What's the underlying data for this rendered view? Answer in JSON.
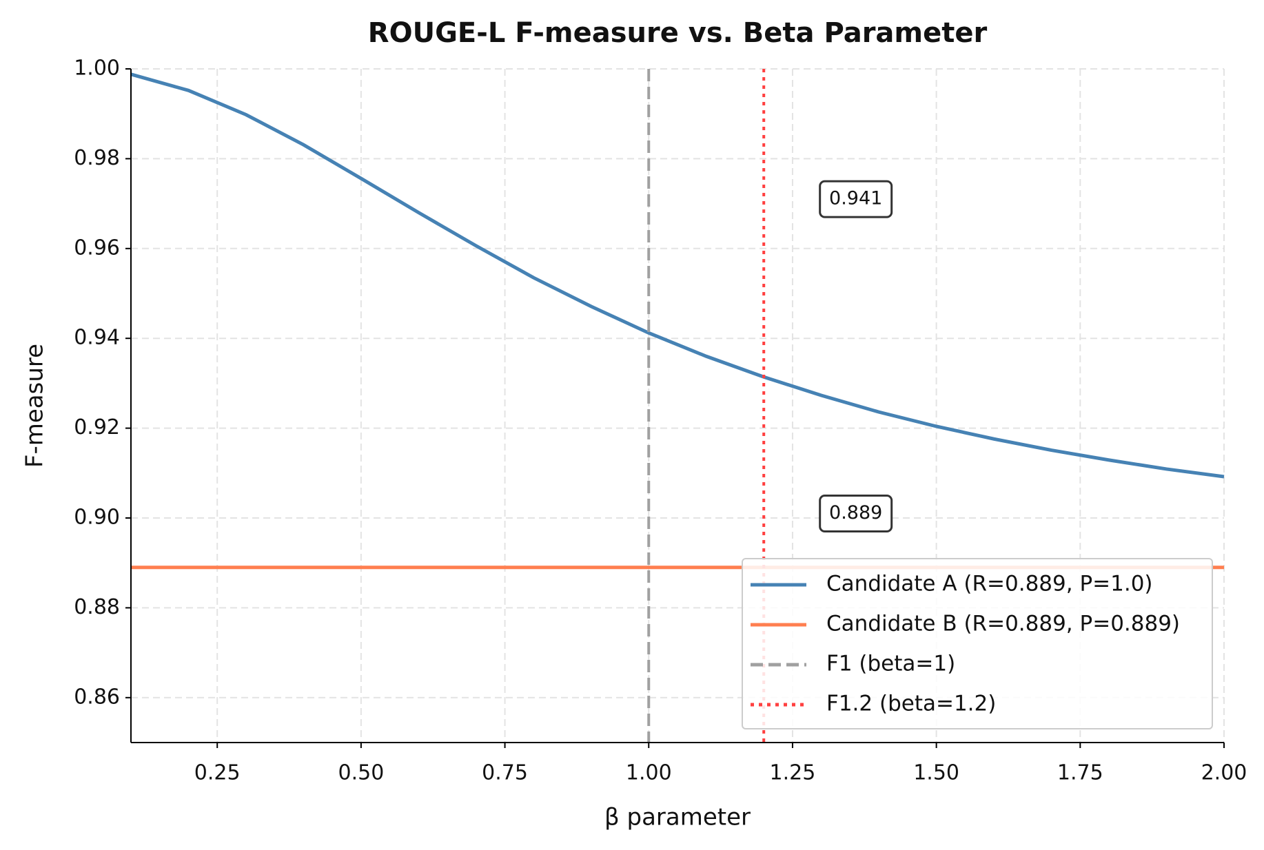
{
  "chart_data": {
    "type": "line",
    "title": "ROUGE-L F-measure vs. Beta Parameter",
    "x_label": "β parameter",
    "y_label": "F-measure",
    "xlim": [
      0.1,
      2.0
    ],
    "ylim": [
      0.85,
      1.0
    ],
    "xticks": [
      0.25,
      {
        "value": 0.5,
        "label": "0.50"
      },
      0.75,
      {
        "value": 1.0,
        "label": "1.00"
      },
      1.25,
      {
        "value": 1.5,
        "label": "1.50"
      },
      1.75,
      {
        "value": 2.0,
        "label": "2.00"
      }
    ],
    "yticks": [
      0.86,
      0.88,
      {
        "value": 0.9,
        "label": "0.90"
      },
      0.92,
      0.94,
      0.96,
      0.98,
      {
        "value": 1.0,
        "label": "1.00"
      }
    ],
    "grid": true,
    "legend": "lower right",
    "series": [
      {
        "name": "Candidate A (R=0.889, P=1.0)",
        "color": "#4682b4",
        "style": "solid",
        "x": [
          0.1,
          0.2,
          0.3,
          0.4,
          0.5,
          0.6,
          0.7,
          0.8,
          0.9,
          1.0,
          1.1,
          1.2,
          1.3,
          1.4,
          1.5,
          1.6,
          1.7,
          1.8,
          1.9,
          2.0
        ],
        "values": [
          0.9988,
          0.9952,
          0.9898,
          0.9831,
          0.9756,
          0.968,
          0.9606,
          0.9535,
          0.9471,
          0.9412,
          0.936,
          0.9314,
          0.9273,
          0.9236,
          0.9204,
          0.9176,
          0.9151,
          0.9129,
          0.9109,
          0.9092
        ]
      },
      {
        "name": "Candidate B (R=0.889, P=0.889)",
        "color": "#ff7f50",
        "style": "solid",
        "x": [
          0.1,
          2.0
        ],
        "values": [
          0.889,
          0.889
        ]
      },
      {
        "name": "F1 (beta=1)",
        "color": "#a0a0a0",
        "style": "dashed",
        "vline": 1.0
      },
      {
        "name": "F1.2 (beta=1.2)",
        "color": "#ff4040",
        "style": "dotted",
        "vline": 1.2
      }
    ],
    "annotations": [
      {
        "text": "0.941",
        "x": 1.3,
        "y": 0.971
      },
      {
        "text": "0.889",
        "x": 1.3,
        "y": 0.901
      }
    ]
  }
}
